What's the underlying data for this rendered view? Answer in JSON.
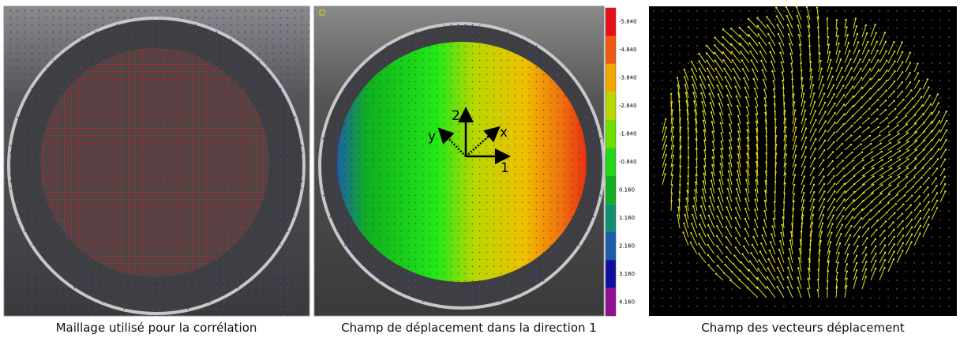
{
  "panels": [
    {
      "caption": "Maillage utilisé pour la corrélation"
    },
    {
      "caption": "Champ de déplacement dans la direction 1",
      "axis_labels": {
        "one": "1",
        "two": "2",
        "x": "x",
        "y": "y"
      },
      "colorbar": {
        "labels": [
          "-5.840",
          "-4.840",
          "-3.840",
          "-2.840",
          "-1.840",
          "-0.840",
          "0.160",
          "1.160",
          "2.160",
          "3.160",
          "4.160"
        ],
        "colors": [
          "#e8101a",
          "#f05a10",
          "#f0a800",
          "#b8d800",
          "#6ee000",
          "#22d818",
          "#10b020",
          "#109070",
          "#1a60a8",
          "#1010a0",
          "#901090"
        ]
      }
    },
    {
      "caption": "Champ des vecteurs déplacement"
    }
  ]
}
